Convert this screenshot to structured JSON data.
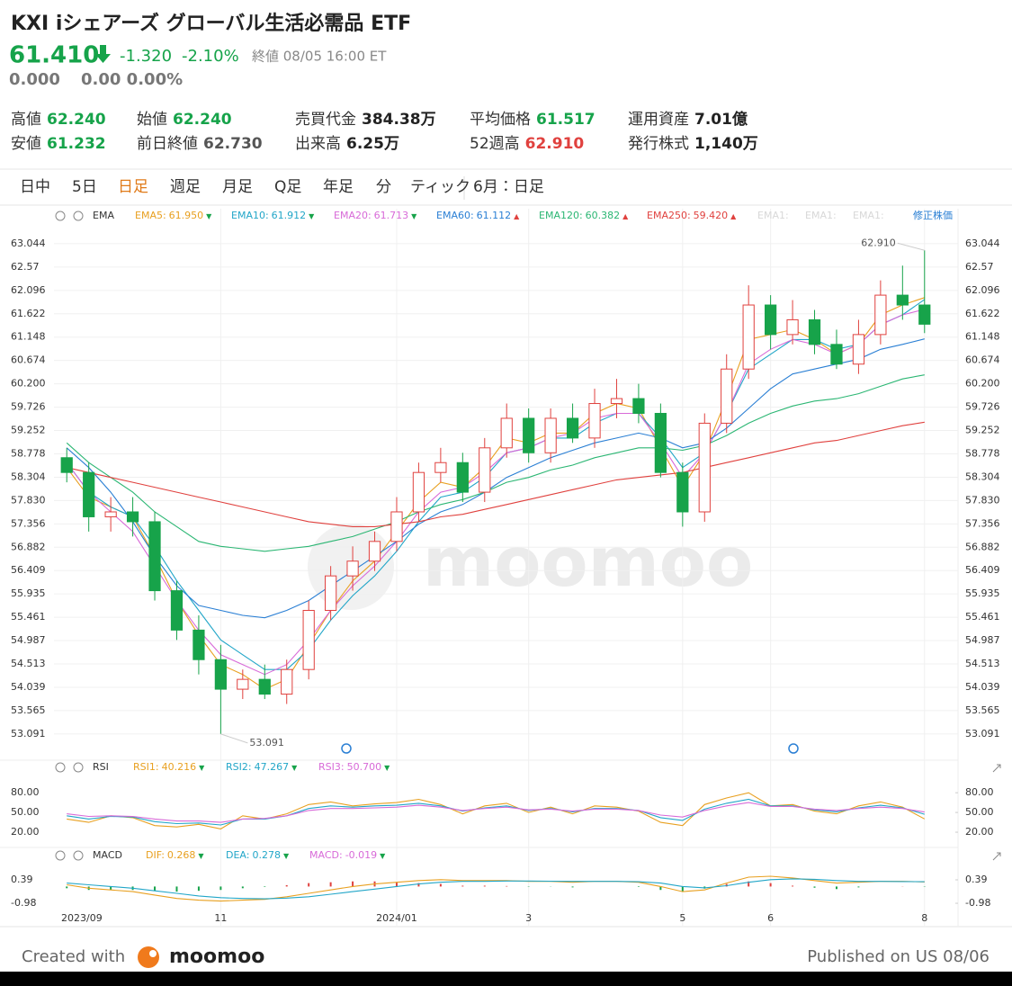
{
  "header": {
    "title": "KXI iシェアーズ グローバル生活必需品 ETF",
    "price": "61.410",
    "change": "-1.320",
    "change_pct": "-2.10%",
    "status": "終値 08/05 16:00 ET",
    "ext_price": "0.000",
    "ext_change": "0.00 0.00%"
  },
  "stats": [
    [
      {
        "label": "高値",
        "value": "62.240",
        "color": "#16a34a"
      },
      {
        "label": "始値",
        "value": "62.240",
        "color": "#16a34a"
      },
      {
        "label": "売買代金",
        "value": "384.38万",
        "color": "#222222"
      },
      {
        "label": "平均価格",
        "value": "61.517",
        "color": "#16a34a"
      },
      {
        "label": "運用資産",
        "value": "7.01億",
        "color": "#222222"
      }
    ],
    [
      {
        "label": "安値",
        "value": "61.232",
        "color": "#16a34a"
      },
      {
        "label": "前日終値",
        "value": "62.730",
        "color": "#555555"
      },
      {
        "label": "出来高",
        "value": "6.25万",
        "color": "#222222"
      },
      {
        "label": "52週高",
        "value": "62.910",
        "color": "#e0413e"
      },
      {
        "label": "発行株式",
        "value": "1,140万",
        "color": "#222222"
      }
    ]
  ],
  "tabs": [
    {
      "label": "日中"
    },
    {
      "label": "5日"
    },
    {
      "label": "日足",
      "active": true
    },
    {
      "label": "週足"
    },
    {
      "label": "月足"
    },
    {
      "label": "Q足"
    },
    {
      "label": "年足"
    },
    {
      "label": "分"
    },
    {
      "label": "ティック"
    },
    {
      "label": "6月：日足"
    }
  ],
  "watermark": "moomoo",
  "chart_data": [
    {
      "type": "candlestick",
      "indicator": "EMA",
      "faded_legend": [
        "EMA1:",
        "EMA1:",
        "EMA1:"
      ],
      "adjust_label": "修正株価",
      "up_color": "#e0413e",
      "down_color": "#17a34a",
      "categories": [
        "2023/09",
        null,
        null,
        null,
        null,
        null,
        null,
        "11",
        null,
        null,
        null,
        null,
        null,
        null,
        null,
        "2024/01",
        null,
        null,
        null,
        null,
        null,
        "3",
        null,
        null,
        null,
        null,
        null,
        null,
        "5",
        null,
        null,
        null,
        "6",
        null,
        null,
        null,
        null,
        null,
        null,
        "8"
      ],
      "open": [
        58.7,
        58.4,
        57.5,
        57.6,
        57.4,
        56.0,
        55.2,
        54.6,
        54.0,
        54.2,
        53.9,
        54.4,
        55.6,
        56.3,
        56.6,
        57.0,
        57.6,
        58.4,
        58.6,
        58.0,
        58.9,
        59.5,
        58.8,
        59.5,
        59.1,
        59.8,
        59.9,
        59.6,
        58.4,
        57.6,
        59.4,
        60.5,
        61.8,
        61.2,
        61.5,
        61.0,
        60.6,
        61.2,
        62.0,
        61.8
      ],
      "high": [
        58.9,
        58.6,
        57.9,
        57.9,
        57.6,
        56.2,
        55.5,
        54.9,
        54.4,
        54.5,
        54.6,
        55.8,
        56.5,
        56.9,
        57.2,
        57.9,
        58.6,
        58.9,
        58.8,
        59.1,
        59.8,
        59.7,
        59.7,
        59.8,
        60.1,
        60.3,
        60.2,
        59.8,
        58.6,
        59.6,
        60.8,
        62.2,
        62.0,
        61.9,
        61.7,
        61.3,
        61.5,
        62.3,
        62.6,
        62.91
      ],
      "low": [
        58.2,
        57.2,
        57.2,
        57.1,
        55.8,
        55.0,
        54.3,
        53.091,
        53.8,
        53.8,
        53.7,
        54.2,
        55.4,
        56.0,
        56.4,
        56.8,
        57.4,
        58.2,
        57.8,
        57.8,
        58.7,
        58.6,
        58.6,
        59.0,
        58.9,
        59.5,
        59.4,
        58.3,
        57.3,
        57.4,
        59.2,
        60.3,
        60.9,
        61.0,
        60.8,
        60.5,
        60.4,
        61.0,
        61.5,
        61.23
      ],
      "close": [
        58.4,
        57.5,
        57.6,
        57.4,
        56.0,
        55.2,
        54.6,
        54.0,
        54.2,
        53.9,
        54.4,
        55.6,
        56.3,
        56.6,
        57.0,
        57.6,
        58.4,
        58.6,
        58.0,
        58.9,
        59.5,
        58.8,
        59.5,
        59.1,
        59.8,
        59.9,
        59.6,
        58.4,
        57.6,
        59.4,
        60.5,
        61.8,
        61.2,
        61.5,
        61.0,
        60.6,
        61.2,
        62.0,
        61.8,
        61.41
      ],
      "series": [
        {
          "name": "EMA5:",
          "color": "#e8a020",
          "value_label": "61.950",
          "trend": "▼",
          "values": [
            58.5,
            57.9,
            57.7,
            57.5,
            56.7,
            55.8,
            55.1,
            54.5,
            54.3,
            54.0,
            54.2,
            54.9,
            55.6,
            56.2,
            56.6,
            57.2,
            57.8,
            58.2,
            58.1,
            58.5,
            59.1,
            59.0,
            59.2,
            59.2,
            59.6,
            59.8,
            59.7,
            58.9,
            58.1,
            58.8,
            59.9,
            61.1,
            61.2,
            61.3,
            61.1,
            60.8,
            61.0,
            61.6,
            61.8,
            61.95
          ]
        },
        {
          "name": "EMA10:",
          "color": "#22a6c8",
          "value_label": "61.912",
          "trend": "▼",
          "values": [
            58.6,
            58.0,
            57.7,
            57.5,
            56.9,
            56.2,
            55.6,
            55.0,
            54.7,
            54.4,
            54.4,
            54.8,
            55.4,
            55.9,
            56.3,
            56.8,
            57.4,
            57.9,
            58.0,
            58.3,
            58.8,
            58.9,
            59.1,
            59.1,
            59.4,
            59.6,
            59.6,
            59.1,
            58.5,
            58.8,
            59.6,
            60.5,
            60.8,
            61.1,
            61.1,
            60.9,
            61.0,
            61.4,
            61.6,
            61.912
          ]
        },
        {
          "name": "EMA20:",
          "color": "#d86ad8",
          "value_label": "61.713",
          "trend": "▼",
          "values": [
            58.6,
            58.0,
            57.6,
            57.2,
            56.5,
            55.8,
            55.2,
            54.7,
            54.5,
            54.3,
            54.5,
            55.0,
            55.6,
            56.1,
            56.5,
            57.0,
            57.6,
            58.0,
            58.1,
            58.4,
            58.8,
            58.9,
            59.1,
            59.2,
            59.5,
            59.6,
            59.6,
            59.0,
            58.3,
            58.8,
            59.6,
            60.6,
            60.9,
            61.1,
            61.0,
            60.8,
            61.0,
            61.4,
            61.6,
            61.713
          ]
        },
        {
          "name": "EMA60:",
          "color": "#2a7fd4",
          "value_label": "61.112",
          "trend": "▲",
          "values": [
            58.9,
            58.5,
            58.0,
            57.4,
            56.7,
            56.1,
            55.7,
            55.6,
            55.5,
            55.45,
            55.6,
            55.8,
            56.1,
            56.4,
            56.7,
            57.0,
            57.35,
            57.6,
            57.75,
            58.0,
            58.3,
            58.5,
            58.7,
            58.85,
            59.0,
            59.1,
            59.2,
            59.1,
            58.9,
            59.0,
            59.3,
            59.7,
            60.1,
            60.4,
            60.5,
            60.6,
            60.7,
            60.9,
            61.0,
            61.112
          ]
        },
        {
          "name": "EMA120:",
          "color": "#2bb673",
          "value_label": "60.382",
          "trend": "▲",
          "values": [
            59.0,
            58.6,
            58.3,
            58.0,
            57.6,
            57.3,
            57.0,
            56.9,
            56.85,
            56.8,
            56.85,
            56.9,
            57.0,
            57.1,
            57.25,
            57.4,
            57.6,
            57.75,
            57.85,
            58.0,
            58.2,
            58.3,
            58.45,
            58.55,
            58.7,
            58.8,
            58.9,
            58.9,
            58.85,
            58.95,
            59.15,
            59.4,
            59.6,
            59.75,
            59.85,
            59.9,
            60.0,
            60.15,
            60.3,
            60.382
          ]
        },
        {
          "name": "EMA250:",
          "color": "#e0413e",
          "value_label": "59.420",
          "trend": "▲",
          "values": [
            58.5,
            58.4,
            58.3,
            58.2,
            58.1,
            58.0,
            57.9,
            57.8,
            57.7,
            57.6,
            57.5,
            57.4,
            57.35,
            57.3,
            57.3,
            57.35,
            57.4,
            57.5,
            57.55,
            57.65,
            57.75,
            57.85,
            57.95,
            58.05,
            58.15,
            58.25,
            58.3,
            58.35,
            58.4,
            58.5,
            58.6,
            58.7,
            58.8,
            58.9,
            59.0,
            59.05,
            59.15,
            59.25,
            59.35,
            59.42
          ]
        }
      ],
      "annotations": {
        "high_label": "62.910",
        "low_label": "53.091"
      },
      "ylim": [
        52.65,
        63.28
      ],
      "yticks": [
        53.091,
        53.565,
        54.039,
        54.513,
        54.987,
        55.461,
        55.935,
        56.409,
        56.882,
        57.356,
        {
          "value": 57.83,
          "label": "57.830"
        },
        58.304,
        58.778,
        59.252,
        59.726,
        {
          "value": 60.2,
          "label": "60.200"
        },
        60.674,
        61.148,
        61.622,
        62.096,
        62.57,
        63.044
      ],
      "grid": true
    },
    {
      "type": "line",
      "indicator": "RSI",
      "series": [
        {
          "name": "RSI1:",
          "color": "#e8a020",
          "value_label": "40.216",
          "trend": "▼",
          "values": [
            40,
            35,
            45,
            42,
            30,
            28,
            32,
            25,
            45,
            40,
            48,
            62,
            66,
            60,
            63,
            65,
            70,
            62,
            48,
            60,
            64,
            50,
            58,
            48,
            60,
            58,
            52,
            35,
            30,
            62,
            72,
            80,
            60,
            62,
            52,
            48,
            60,
            66,
            58,
            40.216
          ]
        },
        {
          "name": "RSI2:",
          "color": "#22a6c8",
          "value_label": "47.267",
          "trend": "▼",
          "values": [
            45,
            40,
            44,
            43,
            36,
            33,
            34,
            31,
            40,
            40,
            45,
            56,
            60,
            58,
            60,
            61,
            64,
            60,
            52,
            57,
            60,
            53,
            56,
            51,
            56,
            56,
            53,
            42,
            38,
            55,
            64,
            70,
            60,
            60,
            54,
            51,
            57,
            61,
            57,
            47.267
          ]
        },
        {
          "name": "RSI3:",
          "color": "#d86ad8",
          "value_label": "50.700",
          "trend": "▼",
          "values": [
            48,
            44,
            45,
            44,
            40,
            37,
            37,
            35,
            40,
            41,
            45,
            53,
            56,
            56,
            57,
            58,
            61,
            58,
            53,
            56,
            58,
            54,
            55,
            52,
            55,
            55,
            53,
            46,
            43,
            53,
            60,
            65,
            59,
            59,
            55,
            53,
            56,
            58,
            56,
            50.7
          ]
        }
      ],
      "ylim": [
        5,
        98
      ],
      "yticks": [
        {
          "value": 80,
          "label": "80.00"
        },
        {
          "value": 50,
          "label": "50.00"
        },
        {
          "value": 20,
          "label": "20.00"
        }
      ],
      "grid": false
    },
    {
      "type": "macd",
      "indicator": "MACD",
      "up_color": "#e0413e",
      "down_color": "#17a34a",
      "series": [
        {
          "name": "DIF:",
          "color": "#e8a020",
          "value_label": "0.268",
          "trend": "▼",
          "values": [
            0.1,
            -0.1,
            -0.2,
            -0.3,
            -0.5,
            -0.7,
            -0.8,
            -0.85,
            -0.8,
            -0.75,
            -0.6,
            -0.4,
            -0.2,
            0.0,
            0.15,
            0.25,
            0.35,
            0.4,
            0.35,
            0.35,
            0.35,
            0.3,
            0.3,
            0.25,
            0.3,
            0.3,
            0.25,
            0.0,
            -0.3,
            -0.2,
            0.2,
            0.55,
            0.6,
            0.5,
            0.35,
            0.2,
            0.25,
            0.3,
            0.3,
            0.268
          ]
        },
        {
          "name": "DEA:",
          "color": "#22a6c8",
          "value_label": "0.278",
          "trend": "▼",
          "values": [
            0.2,
            0.1,
            0.0,
            -0.1,
            -0.25,
            -0.4,
            -0.55,
            -0.65,
            -0.7,
            -0.72,
            -0.68,
            -0.6,
            -0.45,
            -0.3,
            -0.15,
            0.0,
            0.15,
            0.25,
            0.3,
            0.3,
            0.32,
            0.32,
            0.31,
            0.3,
            0.3,
            0.3,
            0.28,
            0.2,
            0.0,
            -0.08,
            0.05,
            0.25,
            0.4,
            0.45,
            0.42,
            0.35,
            0.3,
            0.3,
            0.29,
            0.278
          ]
        }
      ],
      "histogram": {
        "name": "MACD:",
        "color": "#d86ad8",
        "value_label": "-0.019",
        "trend": "▼",
        "values": [
          -0.1,
          -0.2,
          -0.2,
          -0.2,
          -0.25,
          -0.3,
          -0.25,
          -0.2,
          -0.1,
          -0.03,
          0.08,
          0.2,
          0.25,
          0.3,
          0.3,
          0.25,
          0.2,
          0.15,
          0.05,
          0.05,
          0.03,
          -0.02,
          -0.01,
          -0.05,
          0,
          0,
          -0.03,
          -0.2,
          -0.3,
          -0.12,
          0.15,
          0.3,
          0.2,
          0.05,
          -0.07,
          -0.15,
          -0.05,
          0,
          0.01,
          -0.019
        ]
      },
      "ylim": [
        -1.82,
        1.18
      ],
      "yticks": [
        0.39,
        -0.98
      ],
      "grid": false
    }
  ],
  "footer": {
    "created": "Created with",
    "brand": "moomoo",
    "published": "Published on US 08/06"
  }
}
